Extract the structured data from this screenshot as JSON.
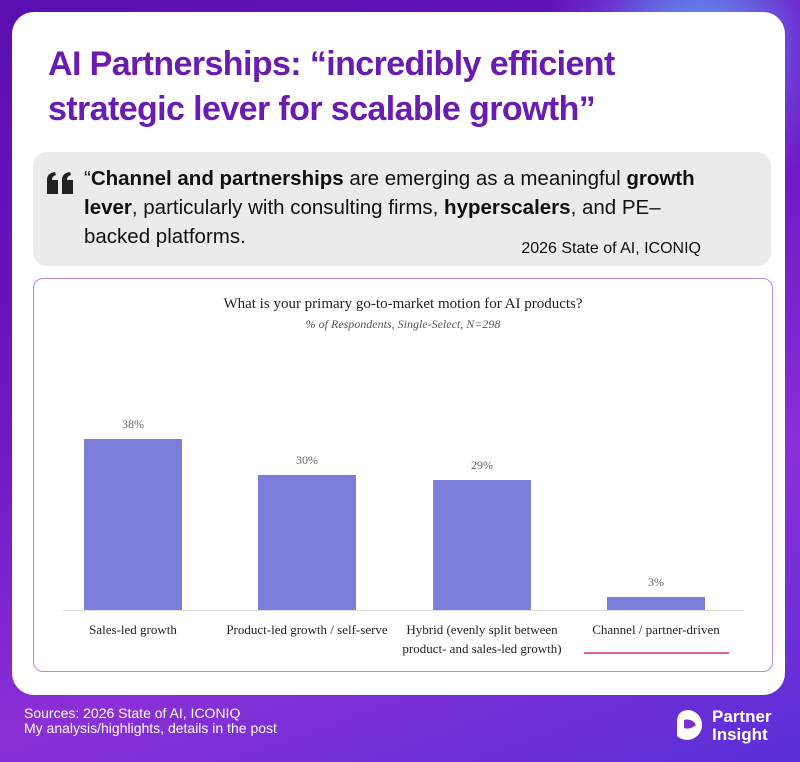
{
  "header": {
    "title": "AI Partnerships: “incredibly efficient strategic lever for scalable growth”"
  },
  "quote": {
    "segments": [
      {
        "text": "“",
        "bold": false
      },
      {
        "text": "Channel and partnerships",
        "bold": true
      },
      {
        "text": " are emerging as a meaningful ",
        "bold": false
      },
      {
        "text": "growth lever",
        "bold": true
      },
      {
        "text": ", particularly with consulting firms, ",
        "bold": false
      },
      {
        "text": "hyperscalers",
        "bold": true
      },
      {
        "text": ", and PE–backed platforms.",
        "bold": false
      }
    ],
    "source": "2026 State of AI, ICONIQ"
  },
  "chart_data": {
    "type": "bar",
    "title": "What is your primary go-to-market motion for AI products?",
    "subtitle": "% of Respondents, Single-Select, N=298",
    "categories": [
      "Sales-led growth",
      "Product-led growth / self-serve",
      "Hybrid (evenly split between product- and sales-led growth)",
      "Channel / partner-driven"
    ],
    "values": [
      38,
      30,
      29,
      3
    ],
    "value_labels": [
      "38%",
      "30%",
      "29%",
      "3%"
    ],
    "color": "#7b7fd9"
  },
  "footer": {
    "lines": [
      "Sources: 2026 State of AI, ICONIQ",
      "My analysis/highlights, details in the post"
    ]
  },
  "logo": {
    "lines": [
      "Partner",
      "Insight"
    ]
  }
}
